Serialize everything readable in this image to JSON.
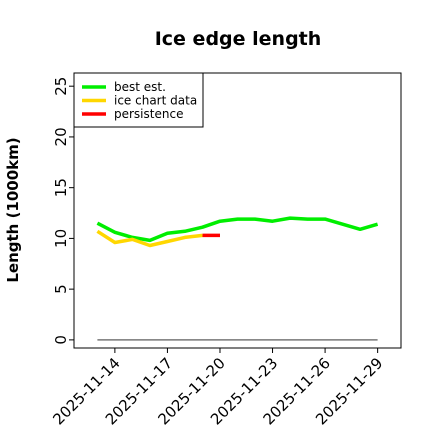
{
  "chart_data": {
    "type": "line",
    "title": "Ice edge length",
    "xlabel": "",
    "ylabel": "Length (1000km)",
    "x_ticks": [
      "2025-11-14",
      "2025-11-17",
      "2025-11-20",
      "2025-11-23",
      "2025-11-26",
      "2025-11-29"
    ],
    "y_ticks": [
      0,
      5,
      10,
      15,
      20,
      25
    ],
    "ylim": [
      -0.8,
      26.3
    ],
    "xlim": [
      "2025-11-11T16:00",
      "2025-11-30T08:00"
    ],
    "grid": false,
    "legend_position": "top-left",
    "series": [
      {
        "name": "best est.",
        "color": "#00ee00",
        "x": [
          "2025-11-13",
          "2025-11-14",
          "2025-11-15",
          "2025-11-16",
          "2025-11-17",
          "2025-11-18",
          "2025-11-19",
          "2025-11-20",
          "2025-11-21",
          "2025-11-22",
          "2025-11-23",
          "2025-11-24",
          "2025-11-25",
          "2025-11-26",
          "2025-11-27",
          "2025-11-28",
          "2025-11-29"
        ],
        "values": [
          11.5,
          10.6,
          10.1,
          9.8,
          10.5,
          10.7,
          11.1,
          11.7,
          11.9,
          11.9,
          11.7,
          12.0,
          11.9,
          11.9,
          11.4,
          10.9,
          11.4
        ]
      },
      {
        "name": "ice chart data",
        "color": "#ffd700",
        "x": [
          "2025-11-13",
          "2025-11-14",
          "2025-11-15",
          "2025-11-16",
          "2025-11-17",
          "2025-11-18",
          "2025-11-19"
        ],
        "values": [
          10.7,
          9.6,
          9.9,
          9.3,
          9.7,
          10.1,
          10.3
        ]
      },
      {
        "name": "persistence",
        "color": "#ff0000",
        "x": [
          "2025-11-19",
          "2025-11-20"
        ],
        "values": [
          10.3,
          10.3
        ]
      },
      {
        "name": "",
        "color": "#777777",
        "x": [
          "2025-11-13",
          "2025-11-29"
        ],
        "values": [
          0,
          0
        ]
      }
    ]
  }
}
